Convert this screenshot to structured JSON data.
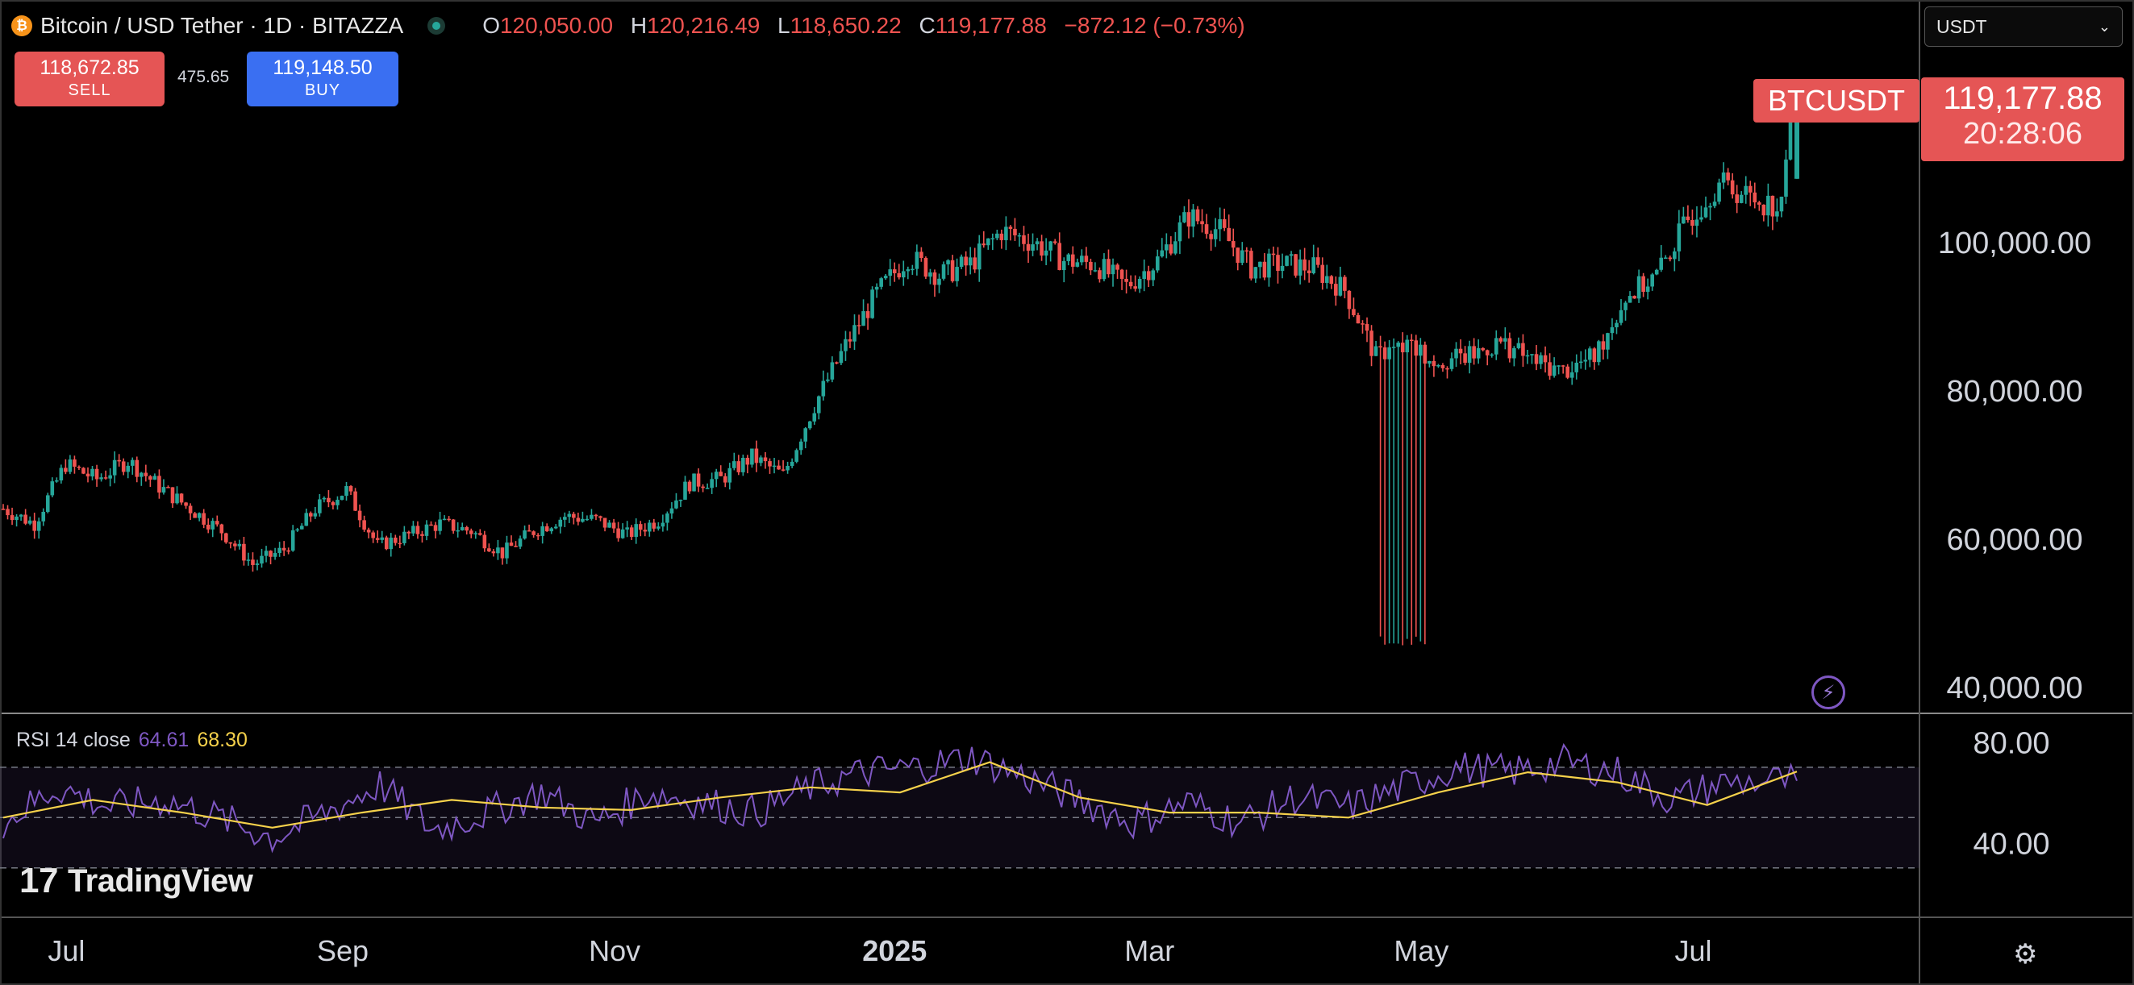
{
  "header": {
    "symbol_title": "Bitcoin / USD Tether · 1D · BITAZZA",
    "logo_icon": "bitcoin-icon",
    "open_label": "O",
    "open": "120,050.00",
    "high_label": "H",
    "high": "120,216.49",
    "low_label": "L",
    "low": "118,650.22",
    "close_label": "C",
    "close": "119,177.88",
    "change": "−872.12 (−0.73%)"
  },
  "trade": {
    "sell_price": "118,672.85",
    "sell_label": "SELL",
    "spread": "475.65",
    "buy_price": "119,148.50",
    "buy_label": "BUY"
  },
  "currency_select": {
    "value": "USDT"
  },
  "last_price": {
    "symbol": "BTCUSDT",
    "price": "119,177.88",
    "countdown": "20:28:06"
  },
  "rsi": {
    "title": "RSI 14 close",
    "value": "64.61",
    "ma_value": "68.30"
  },
  "branding": {
    "logo_text": "TradingView",
    "logo_glyph": "17"
  },
  "colors": {
    "up": "#26a69a",
    "down": "#ef5350",
    "rsi": "#7e57c2",
    "rsi_ma": "#f5d14b",
    "badge": "#e55555",
    "buy": "#3a6ff2"
  },
  "chart_data": [
    {
      "type": "candlestick",
      "title": "Bitcoin / USD Tether · 1D · BITAZZA",
      "x_ticks": [
        "Jul",
        "Sep",
        "Nov",
        "2025",
        "Mar",
        "May",
        "Jul"
      ],
      "y_ticks": [
        "100,000.00",
        "80,000.00",
        "60,000.00",
        "40,000.00"
      ],
      "ylim": [
        40000,
        120000
      ],
      "last_price": 119177.88,
      "x_range": [
        "2024-06-15",
        "2025-07-21"
      ],
      "series": [
        {
          "points": [
            [
              "2024-06-15",
              64000
            ],
            [
              "2024-06-22",
              62000
            ],
            [
              "2024-06-29",
              70000
            ],
            [
              "2024-07-06",
              68000
            ],
            [
              "2024-07-13",
              70500
            ],
            [
              "2024-07-20",
              67000
            ],
            [
              "2024-07-27",
              64000
            ],
            [
              "2024-08-03",
              61000
            ],
            [
              "2024-08-10",
              56500
            ],
            [
              "2024-08-17",
              58500
            ],
            [
              "2024-08-24",
              64000
            ],
            [
              "2024-08-31",
              66500
            ],
            [
              "2024-09-07",
              59000
            ],
            [
              "2024-09-14",
              60500
            ],
            [
              "2024-09-21",
              62000
            ],
            [
              "2024-09-28",
              61000
            ],
            [
              "2024-10-05",
              58000
            ],
            [
              "2024-10-12",
              61000
            ],
            [
              "2024-10-19",
              63000
            ],
            [
              "2024-10-26",
              62500
            ],
            [
              "2024-11-02",
              60500
            ],
            [
              "2024-11-09",
              62500
            ],
            [
              "2024-11-16",
              67500
            ],
            [
              "2024-11-23",
              68000
            ],
            [
              "2024-11-30",
              71000
            ],
            [
              "2024-12-07",
              68500
            ],
            [
              "2024-12-14",
              78000
            ],
            [
              "2024-12-21",
              86000
            ],
            [
              "2024-12-28",
              93000
            ],
            [
              "2025-01-04",
              98000
            ],
            [
              "2025-01-11",
              95500
            ],
            [
              "2025-01-18",
              97000
            ],
            [
              "2025-01-25",
              101500
            ],
            [
              "2025-02-01",
              100000
            ],
            [
              "2025-02-08",
              97500
            ],
            [
              "2025-02-15",
              97000
            ],
            [
              "2025-02-22",
              94000
            ],
            [
              "2025-03-01",
              97500
            ],
            [
              "2025-03-08",
              103500
            ],
            [
              "2025-03-15",
              101500
            ],
            [
              "2025-03-22",
              96500
            ],
            [
              "2025-03-29",
              97000
            ],
            [
              "2025-04-05",
              96500
            ],
            [
              "2025-04-12",
              93500
            ],
            [
              "2025-04-19",
              84500
            ],
            [
              "2025-04-26",
              86000
            ],
            [
              "2025-05-03",
              84000
            ],
            [
              "2025-05-10",
              84500
            ],
            [
              "2025-05-17",
              86500
            ],
            [
              "2025-05-24",
              84000
            ],
            [
              "2025-05-31",
              82500
            ],
            [
              "2025-06-07",
              84500
            ],
            [
              "2025-06-14",
              92500
            ],
            [
              "2025-06-21",
              95500
            ],
            [
              "2025-06-28",
              103000
            ],
            [
              "2025-07-05",
              108000
            ],
            [
              "2025-07-12",
              106000
            ],
            [
              "2025-07-19",
              104500
            ],
            [
              "2025-07-21",
              119177.88
            ]
          ]
        }
      ]
    },
    {
      "type": "line",
      "title": "RSI 14 close",
      "y_ticks": [
        "80.00",
        "40.00"
      ],
      "ylim": [
        20,
        85
      ],
      "x_range": [
        "2024-06-15",
        "2025-07-21"
      ],
      "series": [
        {
          "name": "RSI 14 close",
          "points": [
            [
              0.0,
              48
            ],
            [
              0.03,
              62
            ],
            [
              0.06,
              54
            ],
            [
              0.09,
              57
            ],
            [
              0.12,
              50
            ],
            [
              0.15,
              42
            ],
            [
              0.18,
              52
            ],
            [
              0.21,
              63
            ],
            [
              0.24,
              45
            ],
            [
              0.27,
              52
            ],
            [
              0.3,
              60
            ],
            [
              0.33,
              48
            ],
            [
              0.36,
              60
            ],
            [
              0.39,
              56
            ],
            [
              0.42,
              52
            ],
            [
              0.45,
              62
            ],
            [
              0.48,
              68
            ],
            [
              0.51,
              70
            ],
            [
              0.54,
              74
            ],
            [
              0.57,
              66
            ],
            [
              0.6,
              57
            ],
            [
              0.63,
              48
            ],
            [
              0.66,
              56
            ],
            [
              0.69,
              48
            ],
            [
              0.72,
              58
            ],
            [
              0.75,
              54
            ],
            [
              0.78,
              62
            ],
            [
              0.81,
              70
            ],
            [
              0.84,
              68
            ],
            [
              0.87,
              72
            ],
            [
              0.9,
              68
            ],
            [
              0.93,
              57
            ],
            [
              0.96,
              64
            ],
            [
              1.0,
              64.61
            ]
          ]
        },
        {
          "name": "",
          "points": [
            [
              0.0,
              50
            ],
            [
              0.05,
              57
            ],
            [
              0.1,
              52
            ],
            [
              0.15,
              46
            ],
            [
              0.2,
              52
            ],
            [
              0.25,
              57
            ],
            [
              0.3,
              54
            ],
            [
              0.35,
              53
            ],
            [
              0.4,
              58
            ],
            [
              0.45,
              62
            ],
            [
              0.5,
              60
            ],
            [
              0.55,
              72
            ],
            [
              0.6,
              58
            ],
            [
              0.65,
              52
            ],
            [
              0.7,
              52
            ],
            [
              0.75,
              50
            ],
            [
              0.8,
              60
            ],
            [
              0.85,
              68
            ],
            [
              0.9,
              64
            ],
            [
              0.95,
              55
            ],
            [
              1.0,
              68.3
            ]
          ]
        }
      ]
    }
  ]
}
